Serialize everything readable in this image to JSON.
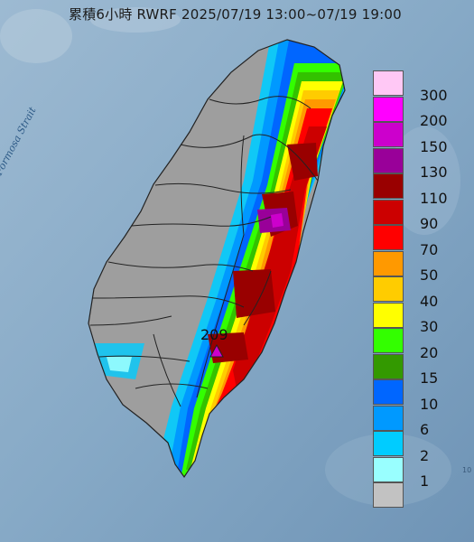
{
  "title": "累積6小時 RWRF 2025/07/19 13:00~07/19 19:00",
  "map": {
    "sea_label": "Formosa Strait",
    "max_value_label": "209",
    "max_marker_icon": "triangle-icon",
    "edge_mark": "10"
  },
  "colors": {
    "sea": "#8fb1cb",
    "land_dry": "#9e9e9e",
    "boundary": "#222222"
  },
  "legend": {
    "items": [
      {
        "label": "300",
        "color": "#ffc8f5"
      },
      {
        "label": "200",
        "color": "#ff00ff"
      },
      {
        "label": "150",
        "color": "#cc00cc"
      },
      {
        "label": "130",
        "color": "#990099"
      },
      {
        "label": "110",
        "color": "#990000"
      },
      {
        "label": "90",
        "color": "#cc0000"
      },
      {
        "label": "70",
        "color": "#ff0000"
      },
      {
        "label": "50",
        "color": "#ff9900"
      },
      {
        "label": "40",
        "color": "#ffcc00"
      },
      {
        "label": "30",
        "color": "#ffff00"
      },
      {
        "label": "20",
        "color": "#33ff00"
      },
      {
        "label": "15",
        "color": "#339900"
      },
      {
        "label": "10",
        "color": "#0066ff"
      },
      {
        "label": "6",
        "color": "#0099ff"
      },
      {
        "label": "2",
        "color": "#00ccff"
      },
      {
        "label": "1",
        "color": "#99ffff"
      },
      {
        "label": "",
        "color": "#c2c2c2"
      }
    ]
  }
}
